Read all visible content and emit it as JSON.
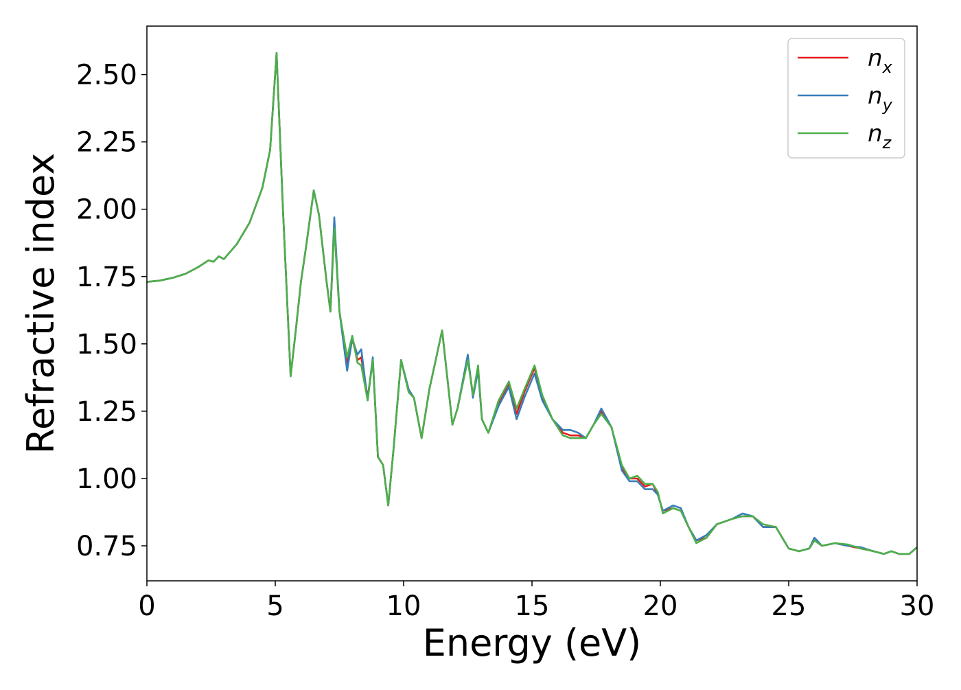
{
  "chart_data": {
    "type": "line",
    "title": "",
    "xlabel": "Energy (eV)",
    "ylabel": "Refractive index",
    "xlim": [
      0,
      30
    ],
    "ylim": [
      0.62,
      2.68
    ],
    "xticks": [
      0,
      5,
      10,
      15,
      20,
      25,
      30
    ],
    "xtick_labels": [
      "0",
      "5",
      "10",
      "15",
      "20",
      "25",
      "30"
    ],
    "yticks": [
      0.75,
      1.0,
      1.25,
      1.5,
      1.75,
      2.0,
      2.25,
      2.5
    ],
    "ytick_labels": [
      "0.75",
      "1.00",
      "1.25",
      "1.50",
      "1.75",
      "2.00",
      "2.25",
      "2.50"
    ],
    "grid": false,
    "legend_position": "top-right",
    "series": [
      {
        "name": "n_x",
        "legend_main": "n",
        "legend_sub": "x",
        "color": "#e41a1c",
        "x": [
          0,
          0.5,
          1,
          1.5,
          2,
          2.4,
          2.6,
          2.8,
          3.0,
          3.5,
          4.0,
          4.5,
          4.8,
          5.05,
          5.3,
          5.6,
          5.8,
          6.0,
          6.2,
          6.5,
          6.7,
          7.0,
          7.15,
          7.3,
          7.5,
          7.8,
          8.0,
          8.2,
          8.35,
          8.6,
          8.8,
          9.0,
          9.2,
          9.4,
          9.6,
          9.9,
          10.2,
          10.4,
          10.7,
          11.0,
          11.5,
          11.9,
          12.1,
          12.5,
          12.7,
          12.9,
          13.05,
          13.3,
          13.7,
          14.1,
          14.4,
          14.7,
          15.1,
          15.4,
          15.8,
          16.2,
          16.5,
          16.8,
          17.1,
          17.4,
          17.7,
          18.1,
          18.5,
          18.8,
          19.1,
          19.4,
          19.7,
          19.9,
          20.1,
          20.5,
          20.8,
          21.1,
          21.4,
          21.8,
          22.2,
          22.8,
          23.2,
          23.6,
          24.0,
          24.5,
          25.0,
          25.4,
          25.8,
          26.0,
          26.3,
          26.8,
          27.3,
          27.8,
          28.3,
          28.7,
          29.0,
          29.3,
          29.7,
          30.0
        ],
        "y": [
          1.73,
          1.735,
          1.745,
          1.76,
          1.785,
          1.81,
          1.805,
          1.825,
          1.815,
          1.87,
          1.95,
          2.08,
          2.22,
          2.58,
          2.0,
          1.38,
          1.55,
          1.73,
          1.86,
          2.07,
          1.98,
          1.73,
          1.62,
          1.94,
          1.62,
          1.43,
          1.52,
          1.44,
          1.45,
          1.3,
          1.44,
          1.08,
          1.05,
          0.9,
          1.1,
          1.44,
          1.32,
          1.3,
          1.15,
          1.33,
          1.55,
          1.2,
          1.26,
          1.45,
          1.31,
          1.41,
          1.22,
          1.17,
          1.28,
          1.35,
          1.24,
          1.32,
          1.41,
          1.3,
          1.22,
          1.17,
          1.16,
          1.16,
          1.15,
          1.2,
          1.25,
          1.19,
          1.04,
          1.0,
          1.0,
          0.97,
          0.98,
          0.94,
          0.88,
          0.89,
          0.88,
          0.82,
          0.77,
          0.78,
          0.83,
          0.85,
          0.86,
          0.86,
          0.82,
          0.82,
          0.74,
          0.73,
          0.74,
          0.77,
          0.75,
          0.76,
          0.75,
          0.74,
          0.73,
          0.72,
          0.73,
          0.72,
          0.72,
          0.745
        ]
      },
      {
        "name": "n_y",
        "legend_main": "n",
        "legend_sub": "y",
        "color": "#377eb8",
        "x": [
          0,
          0.5,
          1,
          1.5,
          2,
          2.4,
          2.6,
          2.8,
          3.0,
          3.5,
          4.0,
          4.5,
          4.8,
          5.05,
          5.3,
          5.6,
          5.8,
          6.0,
          6.2,
          6.5,
          6.7,
          7.0,
          7.15,
          7.3,
          7.5,
          7.8,
          8.0,
          8.2,
          8.35,
          8.6,
          8.8,
          9.0,
          9.2,
          9.4,
          9.6,
          9.9,
          10.2,
          10.4,
          10.7,
          11.0,
          11.5,
          11.9,
          12.1,
          12.5,
          12.7,
          12.9,
          13.05,
          13.3,
          13.7,
          14.1,
          14.4,
          14.7,
          15.1,
          15.4,
          15.8,
          16.2,
          16.5,
          16.8,
          17.1,
          17.4,
          17.7,
          18.1,
          18.5,
          18.8,
          19.1,
          19.4,
          19.7,
          19.9,
          20.1,
          20.5,
          20.8,
          21.1,
          21.4,
          21.8,
          22.2,
          22.8,
          23.2,
          23.6,
          24.0,
          24.5,
          25.0,
          25.4,
          25.8,
          26.0,
          26.3,
          26.8,
          27.3,
          27.8,
          28.3,
          28.7,
          29.0,
          29.3,
          29.7,
          30.0
        ],
        "y": [
          1.73,
          1.735,
          1.745,
          1.76,
          1.785,
          1.81,
          1.805,
          1.825,
          1.815,
          1.87,
          1.95,
          2.08,
          2.22,
          2.58,
          2.0,
          1.38,
          1.55,
          1.73,
          1.86,
          2.07,
          1.98,
          1.73,
          1.62,
          1.97,
          1.62,
          1.4,
          1.52,
          1.46,
          1.48,
          1.29,
          1.45,
          1.08,
          1.05,
          0.9,
          1.1,
          1.44,
          1.33,
          1.3,
          1.15,
          1.33,
          1.55,
          1.2,
          1.26,
          1.46,
          1.3,
          1.4,
          1.22,
          1.17,
          1.27,
          1.34,
          1.22,
          1.3,
          1.39,
          1.29,
          1.22,
          1.18,
          1.18,
          1.17,
          1.15,
          1.2,
          1.26,
          1.19,
          1.03,
          0.99,
          0.99,
          0.96,
          0.96,
          0.94,
          0.88,
          0.9,
          0.89,
          0.82,
          0.77,
          0.79,
          0.83,
          0.85,
          0.87,
          0.86,
          0.82,
          0.82,
          0.74,
          0.73,
          0.74,
          0.78,
          0.75,
          0.76,
          0.75,
          0.745,
          0.73,
          0.72,
          0.73,
          0.72,
          0.72,
          0.745
        ]
      },
      {
        "name": "n_z",
        "legend_main": "n",
        "legend_sub": "z",
        "color": "#4daf4a",
        "x": [
          0,
          0.5,
          1,
          1.5,
          2,
          2.4,
          2.6,
          2.8,
          3.0,
          3.5,
          4.0,
          4.5,
          4.8,
          5.05,
          5.3,
          5.6,
          5.8,
          6.0,
          6.2,
          6.5,
          6.7,
          7.0,
          7.15,
          7.3,
          7.5,
          7.8,
          8.0,
          8.2,
          8.35,
          8.6,
          8.8,
          9.0,
          9.2,
          9.4,
          9.6,
          9.9,
          10.2,
          10.4,
          10.7,
          11.0,
          11.5,
          11.9,
          12.1,
          12.5,
          12.7,
          12.9,
          13.05,
          13.3,
          13.7,
          14.1,
          14.4,
          14.7,
          15.1,
          15.4,
          15.8,
          16.2,
          16.5,
          16.8,
          17.1,
          17.4,
          17.7,
          18.1,
          18.5,
          18.8,
          19.1,
          19.4,
          19.7,
          19.9,
          20.1,
          20.5,
          20.8,
          21.1,
          21.4,
          21.8,
          22.2,
          22.8,
          23.2,
          23.6,
          24.0,
          24.5,
          25.0,
          25.4,
          25.8,
          26.0,
          26.3,
          26.8,
          27.3,
          27.8,
          28.3,
          28.7,
          29.0,
          29.3,
          29.7,
          30.0
        ],
        "y": [
          1.73,
          1.735,
          1.745,
          1.76,
          1.785,
          1.81,
          1.805,
          1.825,
          1.815,
          1.87,
          1.95,
          2.08,
          2.22,
          2.58,
          2.0,
          1.38,
          1.55,
          1.73,
          1.86,
          2.07,
          1.98,
          1.73,
          1.62,
          1.93,
          1.62,
          1.45,
          1.53,
          1.43,
          1.42,
          1.29,
          1.44,
          1.08,
          1.05,
          0.9,
          1.1,
          1.44,
          1.32,
          1.3,
          1.15,
          1.33,
          1.55,
          1.2,
          1.26,
          1.44,
          1.31,
          1.42,
          1.22,
          1.17,
          1.29,
          1.36,
          1.26,
          1.33,
          1.42,
          1.31,
          1.22,
          1.16,
          1.15,
          1.15,
          1.15,
          1.2,
          1.24,
          1.19,
          1.05,
          1.0,
          1.01,
          0.98,
          0.98,
          0.95,
          0.87,
          0.89,
          0.88,
          0.82,
          0.76,
          0.78,
          0.83,
          0.85,
          0.86,
          0.86,
          0.83,
          0.82,
          0.74,
          0.73,
          0.74,
          0.77,
          0.75,
          0.76,
          0.755,
          0.74,
          0.73,
          0.72,
          0.73,
          0.72,
          0.72,
          0.745
        ]
      }
    ]
  }
}
